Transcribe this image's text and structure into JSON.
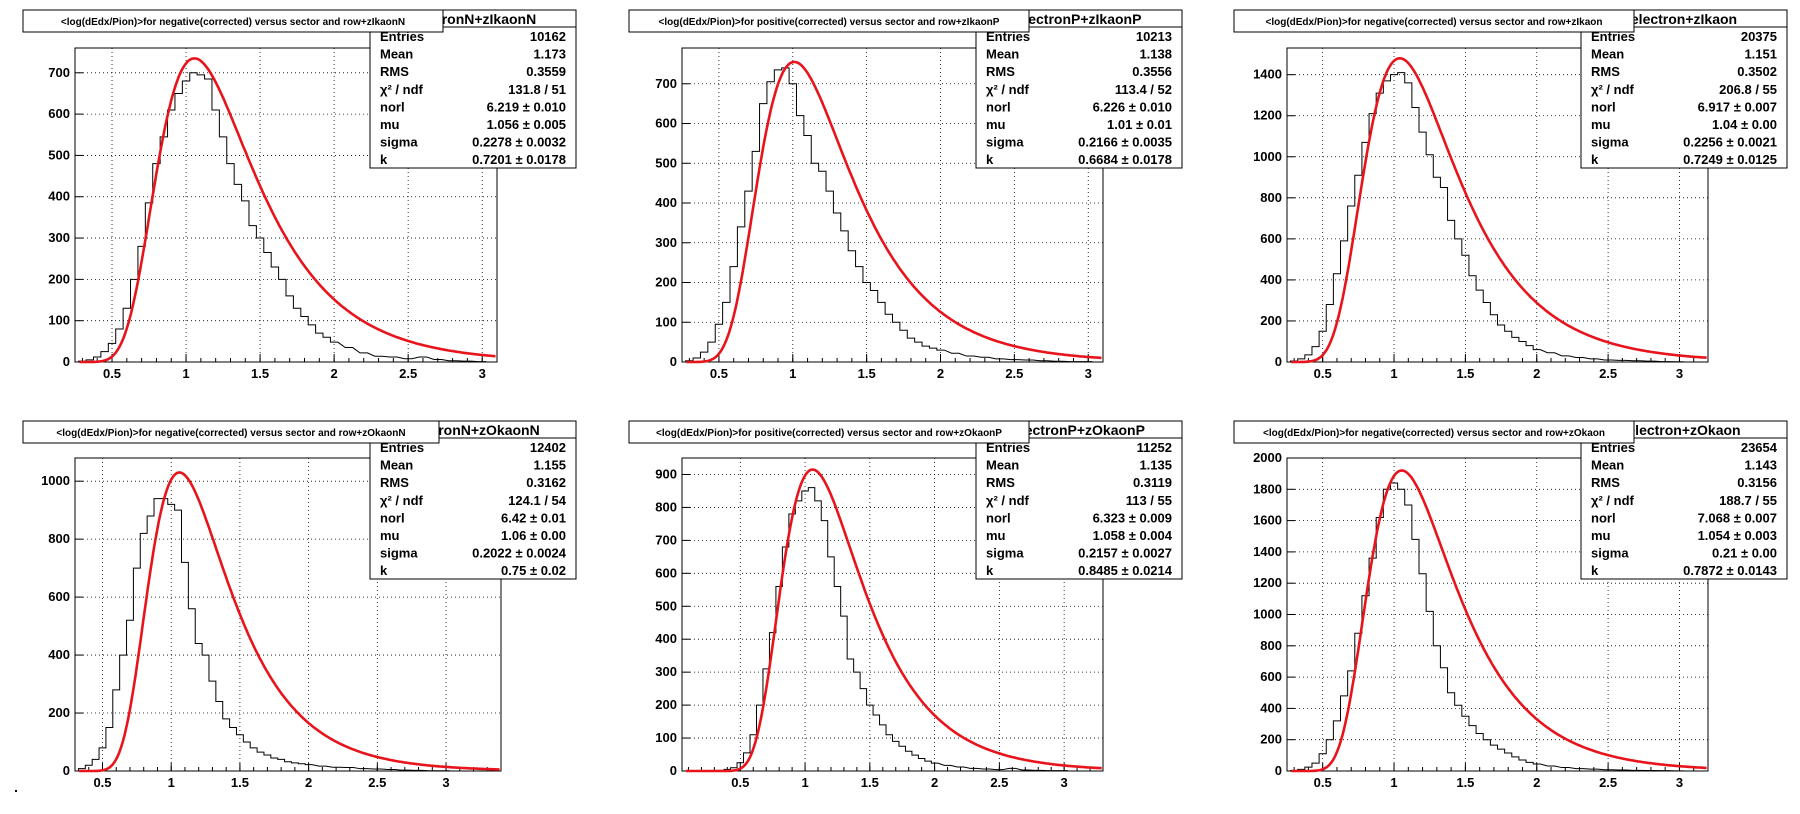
{
  "colors": {
    "histogram": "#000000",
    "fit": "#e8141c",
    "grid": "#000000",
    "background": "#ffffff"
  },
  "chart_data": [
    {
      "type": "line",
      "title": "<log(dEdx/Pion)>for negative(corrected) versus sector and row+zIkaonN",
      "stats_title": "electronN+zIkaonN",
      "stats": [
        {
          "label": "Entries",
          "value": "10162"
        },
        {
          "label": "Mean",
          "value": "1.173"
        },
        {
          "label": "RMS",
          "value": "0.3559"
        },
        {
          "label": "χ² / ndf",
          "value": "131.8 / 51"
        },
        {
          "label": "norl",
          "value": "6.219 ± 0.010"
        },
        {
          "label": "mu",
          "value": "1.056 ± 0.005"
        },
        {
          "label": "sigma",
          "value": "0.2278 ± 0.0032"
        },
        {
          "label": "k",
          "value": "0.7201 ± 0.0178"
        }
      ],
      "xlim": [
        0.25,
        3.1
      ],
      "ylim": [
        0,
        760
      ],
      "xticks": [
        0.5,
        1,
        1.5,
        2,
        2.5,
        3
      ],
      "yticks": [
        0,
        100,
        200,
        300,
        400,
        500,
        600,
        700
      ],
      "xticklabels": [
        "0.5",
        "1",
        "1.5",
        "2",
        "2.5",
        "3"
      ],
      "yticklabels": [
        "0",
        "100",
        "200",
        "300",
        "400",
        "500",
        "600",
        "700"
      ],
      "grid": true,
      "fit_peak_x": 1.056,
      "fit_peak_y": 735,
      "hist_x": [
        0.3,
        0.35,
        0.4,
        0.45,
        0.5,
        0.55,
        0.6,
        0.65,
        0.7,
        0.75,
        0.8,
        0.85,
        0.9,
        0.95,
        1.0,
        1.05,
        1.1,
        1.15,
        1.2,
        1.25,
        1.3,
        1.35,
        1.4,
        1.45,
        1.5,
        1.55,
        1.6,
        1.65,
        1.7,
        1.75,
        1.8,
        1.85,
        1.9,
        1.95,
        2.0,
        2.1,
        2.2,
        2.3,
        2.4,
        2.5,
        2.6,
        2.7,
        2.8,
        2.9,
        3.0
      ],
      "hist_y": [
        2,
        5,
        12,
        25,
        45,
        80,
        130,
        200,
        280,
        385,
        480,
        545,
        610,
        650,
        680,
        700,
        695,
        685,
        610,
        545,
        480,
        430,
        390,
        330,
        300,
        265,
        230,
        200,
        160,
        130,
        110,
        90,
        70,
        60,
        48,
        35,
        22,
        14,
        12,
        8,
        12,
        6,
        3,
        2,
        1
      ]
    },
    {
      "type": "line",
      "title": "<log(dEdx/Pion)>for positive(corrected) versus sector and row+zIkaonP",
      "stats_title": "electronP+zIkaonP",
      "stats": [
        {
          "label": "Entries",
          "value": "10213"
        },
        {
          "label": "Mean",
          "value": "1.138"
        },
        {
          "label": "RMS",
          "value": "0.3556"
        },
        {
          "label": "χ² / ndf",
          "value": "113.4 / 52"
        },
        {
          "label": "norl",
          "value": "6.226 ± 0.010"
        },
        {
          "label": "mu",
          "value": "1.01 ± 0.01"
        },
        {
          "label": "sigma",
          "value": "0.2166 ± 0.0035"
        },
        {
          "label": "k",
          "value": "0.6684 ± 0.0178"
        }
      ],
      "xlim": [
        0.25,
        3.1
      ],
      "ylim": [
        0,
        790
      ],
      "xticks": [
        0.5,
        1,
        1.5,
        2,
        2.5,
        3
      ],
      "yticks": [
        0,
        100,
        200,
        300,
        400,
        500,
        600,
        700
      ],
      "xticklabels": [
        "0.5",
        "1",
        "1.5",
        "2",
        "2.5",
        "3"
      ],
      "yticklabels": [
        "0",
        "100",
        "200",
        "300",
        "400",
        "500",
        "600",
        "700"
      ],
      "grid": true,
      "fit_peak_x": 1.01,
      "fit_peak_y": 755,
      "hist_x": [
        0.3,
        0.35,
        0.4,
        0.45,
        0.5,
        0.55,
        0.6,
        0.65,
        0.7,
        0.75,
        0.8,
        0.85,
        0.9,
        0.95,
        1.0,
        1.05,
        1.1,
        1.15,
        1.2,
        1.25,
        1.3,
        1.35,
        1.4,
        1.45,
        1.5,
        1.55,
        1.6,
        1.65,
        1.7,
        1.75,
        1.8,
        1.85,
        1.9,
        1.95,
        2.0,
        2.1,
        2.2,
        2.3,
        2.4,
        2.5,
        2.6,
        2.7,
        2.8,
        2.9,
        3.0
      ],
      "hist_y": [
        3,
        10,
        25,
        50,
        95,
        150,
        240,
        340,
        430,
        530,
        650,
        705,
        735,
        740,
        700,
        620,
        570,
        500,
        480,
        430,
        375,
        330,
        280,
        240,
        200,
        180,
        150,
        120,
        100,
        80,
        60,
        50,
        40,
        35,
        30,
        22,
        15,
        12,
        8,
        6,
        5,
        3,
        2,
        1,
        1
      ]
    },
    {
      "type": "line",
      "title": "<log(dEdx/Pion)>for negative(corrected) versus sector and row+zIkaon",
      "stats_title": "electron+zIkaon",
      "stats": [
        {
          "label": "Entries",
          "value": "20375"
        },
        {
          "label": "Mean",
          "value": "1.151"
        },
        {
          "label": "RMS",
          "value": "0.3502"
        },
        {
          "label": "χ² / ndf",
          "value": "206.8 / 55"
        },
        {
          "label": "norl",
          "value": "6.917 ± 0.007"
        },
        {
          "label": "mu",
          "value": "1.04 ± 0.00"
        },
        {
          "label": "sigma",
          "value": "0.2256 ± 0.0021"
        },
        {
          "label": "k",
          "value": "0.7249 ± 0.0125"
        }
      ],
      "xlim": [
        0.25,
        3.2
      ],
      "ylim": [
        0,
        1530
      ],
      "xticks": [
        0.5,
        1,
        1.5,
        2,
        2.5,
        3
      ],
      "yticks": [
        0,
        200,
        400,
        600,
        800,
        1000,
        1200,
        1400
      ],
      "xticklabels": [
        "0.5",
        "1",
        "1.5",
        "2",
        "2.5",
        "3"
      ],
      "yticklabels": [
        "0",
        "200",
        "400",
        "600",
        "800",
        "1000",
        "1200",
        "1400"
      ],
      "grid": true,
      "fit_peak_x": 1.04,
      "fit_peak_y": 1480,
      "hist_x": [
        0.3,
        0.35,
        0.4,
        0.45,
        0.5,
        0.55,
        0.6,
        0.65,
        0.7,
        0.75,
        0.8,
        0.85,
        0.9,
        0.95,
        1.0,
        1.05,
        1.1,
        1.15,
        1.2,
        1.25,
        1.3,
        1.35,
        1.4,
        1.45,
        1.5,
        1.55,
        1.6,
        1.65,
        1.7,
        1.75,
        1.8,
        1.85,
        1.9,
        1.95,
        2.0,
        2.1,
        2.2,
        2.3,
        2.4,
        2.5,
        2.6,
        2.7,
        2.8,
        2.9,
        3.0
      ],
      "hist_y": [
        5,
        15,
        35,
        75,
        150,
        280,
        430,
        590,
        760,
        910,
        1070,
        1210,
        1310,
        1370,
        1400,
        1410,
        1360,
        1240,
        1120,
        1010,
        900,
        850,
        690,
        600,
        520,
        420,
        350,
        290,
        230,
        180,
        150,
        120,
        100,
        80,
        60,
        45,
        30,
        22,
        15,
        10,
        8,
        6,
        4,
        2,
        1
      ]
    },
    {
      "type": "line",
      "title": "<log(dEdx/Pion)>for negative(corrected) versus sector and row+zOkaonN",
      "stats_title": "electronN+zOkaonN",
      "stats": [
        {
          "label": "Entries",
          "value": "12402"
        },
        {
          "label": "Mean",
          "value": "1.155"
        },
        {
          "label": "RMS",
          "value": "0.3162"
        },
        {
          "label": "χ² / ndf",
          "value": "124.1 / 54"
        },
        {
          "label": "norl",
          "value": "6.42 ± 0.01"
        },
        {
          "label": "mu",
          "value": "1.06 ± 0.00"
        },
        {
          "label": "sigma",
          "value": "0.2022 ± 0.0024"
        },
        {
          "label": "k",
          "value": "0.75 ± 0.02"
        }
      ],
      "xlim": [
        0.3,
        3.4
      ],
      "ylim": [
        0,
        1080
      ],
      "xticks": [
        0.5,
        1,
        1.5,
        2,
        2.5,
        3
      ],
      "yticks": [
        0,
        200,
        400,
        600,
        800,
        1000
      ],
      "xticklabels": [
        "0.5",
        "1",
        "1.5",
        "2",
        "2.5",
        "3"
      ],
      "yticklabels": [
        "0",
        "200",
        "400",
        "600",
        "800",
        "1000"
      ],
      "grid": true,
      "fit_peak_x": 1.06,
      "fit_peak_y": 1030,
      "hist_x": [
        0.35,
        0.4,
        0.45,
        0.5,
        0.55,
        0.6,
        0.65,
        0.7,
        0.75,
        0.8,
        0.85,
        0.9,
        0.95,
        1.0,
        1.05,
        1.1,
        1.15,
        1.2,
        1.25,
        1.3,
        1.35,
        1.4,
        1.45,
        1.5,
        1.55,
        1.6,
        1.65,
        1.7,
        1.75,
        1.8,
        1.85,
        1.9,
        1.95,
        2.0,
        2.1,
        2.2,
        2.3,
        2.4,
        2.5,
        2.6,
        2.7,
        2.8,
        2.9,
        3.0
      ],
      "hist_y": [
        8,
        20,
        40,
        80,
        150,
        280,
        400,
        520,
        700,
        820,
        880,
        940,
        940,
        920,
        900,
        720,
        560,
        440,
        400,
        310,
        240,
        180,
        150,
        125,
        100,
        80,
        65,
        55,
        45,
        40,
        32,
        28,
        25,
        22,
        17,
        13,
        12,
        8,
        7,
        5,
        3,
        2,
        1,
        1
      ]
    },
    {
      "type": "line",
      "title": "<log(dEdx/Pion)>for positive(corrected) versus sector and row+zOkaonP",
      "stats_title": "electronP+zOkaonP",
      "stats": [
        {
          "label": "Entries",
          "value": "11252"
        },
        {
          "label": "Mean",
          "value": "1.135"
        },
        {
          "label": "RMS",
          "value": "0.3119"
        },
        {
          "label": "χ² / ndf",
          "value": "113 / 55"
        },
        {
          "label": "norl",
          "value": "6.323 ± 0.009"
        },
        {
          "label": "mu",
          "value": "1.058 ± 0.004"
        },
        {
          "label": "sigma",
          "value": "0.2157 ± 0.0027"
        },
        {
          "label": "k",
          "value": "0.8485 ± 0.0214"
        }
      ],
      "xlim": [
        0.05,
        3.3
      ],
      "ylim": [
        0,
        950
      ],
      "xticks": [
        0.5,
        1,
        1.5,
        2,
        2.5,
        3
      ],
      "yticks": [
        0,
        100,
        200,
        300,
        400,
        500,
        600,
        700,
        800,
        900
      ],
      "xticklabels": [
        "0.5",
        "1",
        "1.5",
        "2",
        "2.5",
        "3"
      ],
      "yticklabels": [
        "0",
        "100",
        "200",
        "300",
        "400",
        "500",
        "600",
        "700",
        "800",
        "900"
      ],
      "grid": true,
      "fit_peak_x": 1.058,
      "fit_peak_y": 915,
      "hist_x": [
        0.3,
        0.35,
        0.4,
        0.45,
        0.5,
        0.55,
        0.6,
        0.65,
        0.7,
        0.75,
        0.8,
        0.85,
        0.9,
        0.95,
        1.0,
        1.05,
        1.1,
        1.15,
        1.2,
        1.25,
        1.3,
        1.35,
        1.4,
        1.45,
        1.5,
        1.55,
        1.6,
        1.65,
        1.7,
        1.75,
        1.8,
        1.85,
        1.9,
        1.95,
        2.0,
        2.1,
        2.2,
        2.3,
        2.4,
        2.5,
        2.6,
        2.7,
        2.8,
        2.9,
        3.0
      ],
      "hist_y": [
        1,
        2,
        5,
        10,
        25,
        55,
        110,
        200,
        310,
        420,
        560,
        680,
        780,
        820,
        850,
        860,
        820,
        760,
        650,
        560,
        470,
        340,
        300,
        250,
        200,
        170,
        140,
        110,
        90,
        75,
        60,
        48,
        38,
        30,
        24,
        17,
        12,
        8,
        6,
        4,
        8,
        3,
        2,
        1,
        1
      ]
    },
    {
      "type": "line",
      "title": "<log(dEdx/Pion)>for negative(corrected) versus sector and row+zOkaon",
      "stats_title": "electron+zOkaon",
      "stats": [
        {
          "label": "Entries",
          "value": "23654"
        },
        {
          "label": "Mean",
          "value": "1.143"
        },
        {
          "label": "RMS",
          "value": "0.3156"
        },
        {
          "label": "χ² / ndf",
          "value": "188.7 / 55"
        },
        {
          "label": "norl",
          "value": "7.068 ± 0.007"
        },
        {
          "label": "mu",
          "value": "1.054 ± 0.003"
        },
        {
          "label": "sigma",
          "value": "0.21 ± 0.00"
        },
        {
          "label": "k",
          "value": "0.7872 ± 0.0143"
        }
      ],
      "xlim": [
        0.25,
        3.2
      ],
      "ylim": [
        0,
        2000
      ],
      "xticks": [
        0.5,
        1,
        1.5,
        2,
        2.5,
        3
      ],
      "yticks": [
        0,
        200,
        400,
        600,
        800,
        1000,
        1200,
        1400,
        1600,
        1800,
        2000
      ],
      "xticklabels": [
        "0.5",
        "1",
        "1.5",
        "2",
        "2.5",
        "3"
      ],
      "yticklabels": [
        "0",
        "200",
        "400",
        "600",
        "800",
        "1000",
        "1200",
        "1400",
        "1600",
        "1800",
        "2000"
      ],
      "grid": true,
      "fit_peak_x": 1.054,
      "fit_peak_y": 1920,
      "hist_x": [
        0.3,
        0.35,
        0.4,
        0.45,
        0.5,
        0.55,
        0.6,
        0.65,
        0.7,
        0.75,
        0.8,
        0.85,
        0.9,
        0.95,
        1.0,
        1.05,
        1.1,
        1.15,
        1.2,
        1.25,
        1.3,
        1.35,
        1.4,
        1.45,
        1.5,
        1.55,
        1.6,
        1.65,
        1.7,
        1.75,
        1.8,
        1.85,
        1.9,
        1.95,
        2.0,
        2.1,
        2.2,
        2.3,
        2.4,
        2.5,
        2.6,
        2.7,
        2.8,
        2.9,
        3.0
      ],
      "hist_y": [
        3,
        10,
        25,
        50,
        110,
        200,
        320,
        480,
        640,
        880,
        1120,
        1360,
        1620,
        1800,
        1840,
        1800,
        1700,
        1480,
        1260,
        1020,
        800,
        660,
        500,
        420,
        350,
        290,
        240,
        200,
        165,
        140,
        115,
        90,
        70,
        55,
        45,
        32,
        22,
        15,
        12,
        8,
        6,
        4,
        3,
        2,
        1
      ]
    }
  ]
}
